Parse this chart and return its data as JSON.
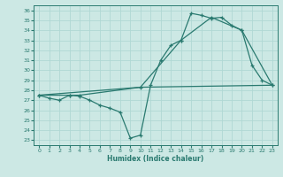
{
  "xlabel": "Humidex (Indice chaleur)",
  "bg_color": "#cce8e4",
  "grid_color": "#b0d8d4",
  "line_color": "#2a7a70",
  "xlim": [
    -0.5,
    23.5
  ],
  "ylim": [
    22.5,
    36.5
  ],
  "yticks": [
    23,
    24,
    25,
    26,
    27,
    28,
    29,
    30,
    31,
    32,
    33,
    34,
    35,
    36
  ],
  "xticks": [
    0,
    1,
    2,
    3,
    4,
    5,
    6,
    7,
    8,
    9,
    10,
    11,
    12,
    13,
    14,
    15,
    16,
    17,
    18,
    19,
    20,
    21,
    22,
    23
  ],
  "line1_x": [
    0,
    1,
    2,
    3,
    4,
    5,
    6,
    7,
    8,
    9,
    10,
    11,
    12,
    13,
    14,
    15,
    16,
    17,
    18,
    19,
    20,
    21,
    22,
    23
  ],
  "line1_y": [
    27.5,
    27.2,
    27.0,
    27.5,
    27.4,
    27.0,
    26.5,
    26.2,
    25.8,
    23.2,
    23.5,
    28.5,
    31.0,
    32.5,
    33.0,
    35.7,
    35.5,
    35.2,
    35.3,
    34.5,
    34.0,
    30.5,
    29.0,
    28.5
  ],
  "line2_x": [
    0,
    3,
    4,
    10,
    14,
    17,
    20,
    23
  ],
  "line2_y": [
    27.5,
    27.5,
    27.5,
    28.3,
    33.0,
    35.3,
    34.0,
    28.5
  ],
  "line3_x": [
    0,
    10,
    23
  ],
  "line3_y": [
    27.5,
    28.3,
    28.5
  ]
}
